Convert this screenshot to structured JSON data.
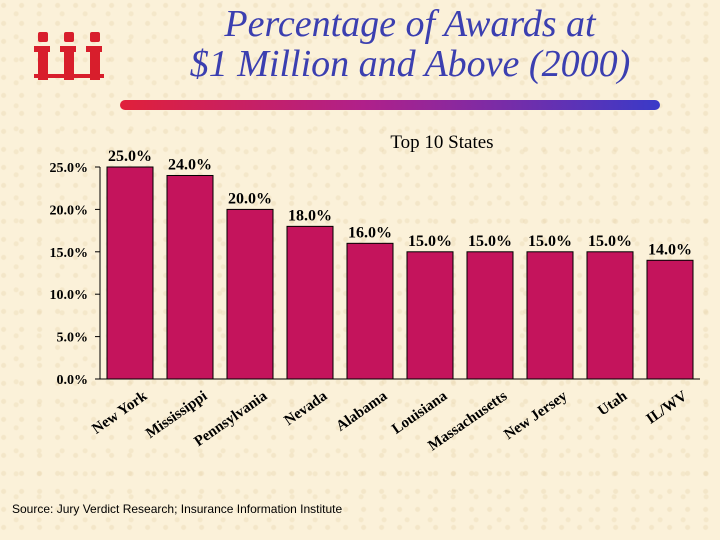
{
  "slide": {
    "title_line1": "Percentage of Awards at",
    "title_line2": "$1 Million and Above (2000)",
    "source": "Source: Jury Verdict Research; Insurance Information Institute",
    "logo_icon": "iii-logo-icon",
    "colors": {
      "title": "#3b3fb0",
      "bar": "#c4145c",
      "logo": "#d81e2c"
    }
  },
  "chart_data": {
    "type": "bar",
    "title": "Top 10 States",
    "categories": [
      "New York",
      "Mississippi",
      "Pennsylvania",
      "Nevada",
      "Alabama",
      "Louisiana",
      "Massachusetts",
      "New Jersey",
      "Utah",
      "IL/WV"
    ],
    "values": [
      25.0,
      24.0,
      20.0,
      18.0,
      16.0,
      15.0,
      15.0,
      15.0,
      15.0,
      14.0
    ],
    "value_labels": [
      "25.0%",
      "24.0%",
      "20.0%",
      "18.0%",
      "16.0%",
      "15.0%",
      "15.0%",
      "15.0%",
      "15.0%",
      "14.0%"
    ],
    "y_ticks": [
      0,
      5,
      10,
      15,
      20,
      25
    ],
    "y_tick_labels": [
      "0.0%",
      "5.0%",
      "10.0%",
      "15.0%",
      "20.0%",
      "25.0%"
    ],
    "ylim": [
      0,
      25
    ],
    "grid": false,
    "legend": "none"
  }
}
